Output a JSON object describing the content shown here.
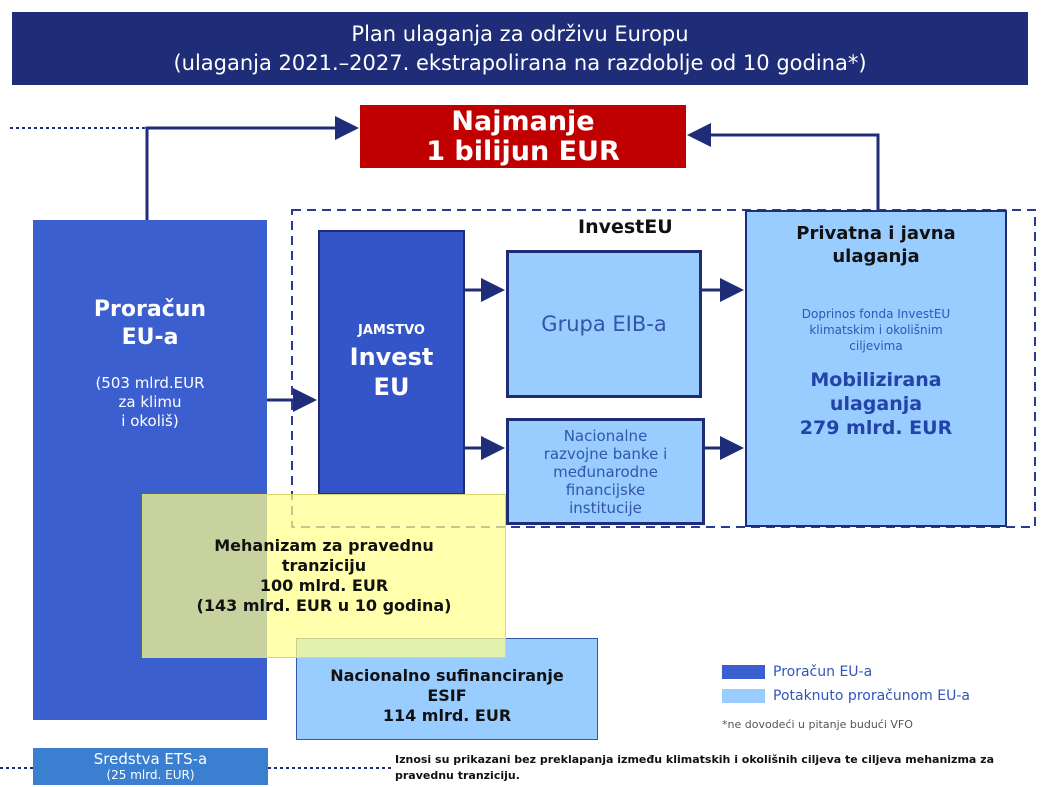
{
  "header": {
    "lines": [
      "Plan ulaganja za održivu Europu",
      "(ulaganja 2021.–2027. ekstrapolirana na razdoblje od 10 godina*)"
    ]
  },
  "nodes": {
    "target": {
      "lines": [
        "Najmanje",
        "1 bilijun EUR"
      ]
    },
    "budget": {
      "title": [
        "Proračun",
        "EU-a"
      ],
      "detail": [
        "(503 mlrd.EUR",
        "za klimu",
        "i okoliš)"
      ]
    },
    "guarantee": {
      "small": "JAMSTVO",
      "lines": [
        "Invest",
        "EU"
      ]
    },
    "investeu_label": "InvestEU",
    "eib": "Grupa EIB-a",
    "national_banks": [
      "Nacionalne",
      "razvojne banke i",
      "međunarodne",
      "financijske",
      "institucije"
    ],
    "private": {
      "title": [
        "Privatna i javna",
        "ulaganja"
      ],
      "note": [
        "Doprinos fonda InvestEU",
        "klimatskim i okolišnim",
        "ciljevima"
      ],
      "amount": [
        "Mobilizirana",
        "ulaganja",
        "279 mlrd. EUR"
      ]
    },
    "jtm": [
      "Mehanizam za pravednu",
      "tranziciju",
      "100 mlrd. EUR",
      "(143 mlrd. EUR u 10 godina)"
    ],
    "cofinancing": [
      "Nacionalno sufinanciranje",
      "ESIF",
      "114 mlrd. EUR"
    ],
    "ets": [
      "Sredstva ETS-a",
      "(25 mlrd. EUR)"
    ]
  },
  "legend": [
    {
      "label": "Proračun EU-a",
      "color": "#3b5fcf"
    },
    {
      "label": "Potaknuto proračunom EU-a",
      "color": "#99ccff"
    }
  ],
  "footnote": "*ne dovodeći u pitanje budući VFO",
  "note": "Iznosi su prikazani bez preklapanja između klimatskih i okolišnih ciljeva te ciljeva mehanizma za pravednu tranziciju."
}
